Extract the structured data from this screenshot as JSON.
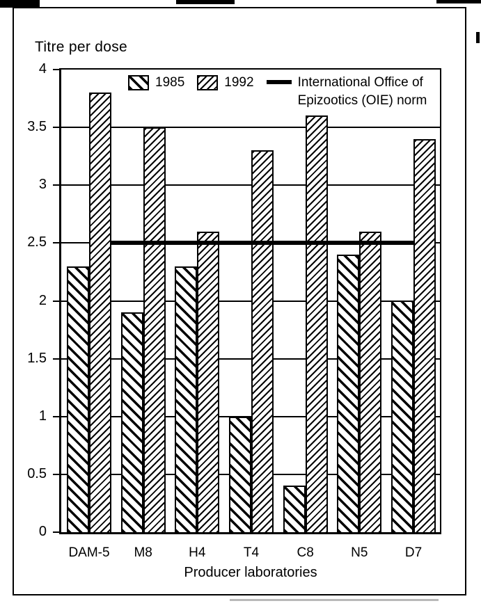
{
  "figure": {
    "y_axis_title": "Titre per dose",
    "x_axis_title": "Producer laboratories"
  },
  "legend": {
    "series1_label": "1985",
    "series2_label": "1992",
    "norm_label_line1": "International Office of",
    "norm_label_line2": "Epizootics (OIE) norm"
  },
  "colors": {
    "ink": "#000000",
    "paper": "#ffffff"
  },
  "chart_data": {
    "type": "bar",
    "title": "",
    "ylabel": "Titre per dose",
    "xlabel": "Producer laboratories",
    "categories": [
      "DAM-5",
      "M8",
      "H4",
      "T4",
      "C8",
      "N5",
      "D7"
    ],
    "series": [
      {
        "name": "1985",
        "hatch": "backslash-diagonal",
        "values": [
          2.3,
          1.9,
          2.3,
          1.0,
          0.4,
          2.4,
          2.0
        ]
      },
      {
        "name": "1992",
        "hatch": "forwardslash-diagonal",
        "values": [
          3.8,
          3.5,
          2.6,
          3.3,
          3.6,
          2.6,
          3.4
        ]
      }
    ],
    "reference_line": {
      "label": "International Office of Epizootics (OIE) norm",
      "value": 2.5
    },
    "ylim": [
      0,
      4
    ],
    "ytick_step": 0.5,
    "yticks": [
      "4",
      "3.5",
      "3",
      "2.5",
      "2",
      "1.5",
      "1",
      "0.5",
      "0"
    ],
    "grid": true,
    "legend_position": "top-inside",
    "style": "black-and-white scanned figure, hatched bars"
  }
}
